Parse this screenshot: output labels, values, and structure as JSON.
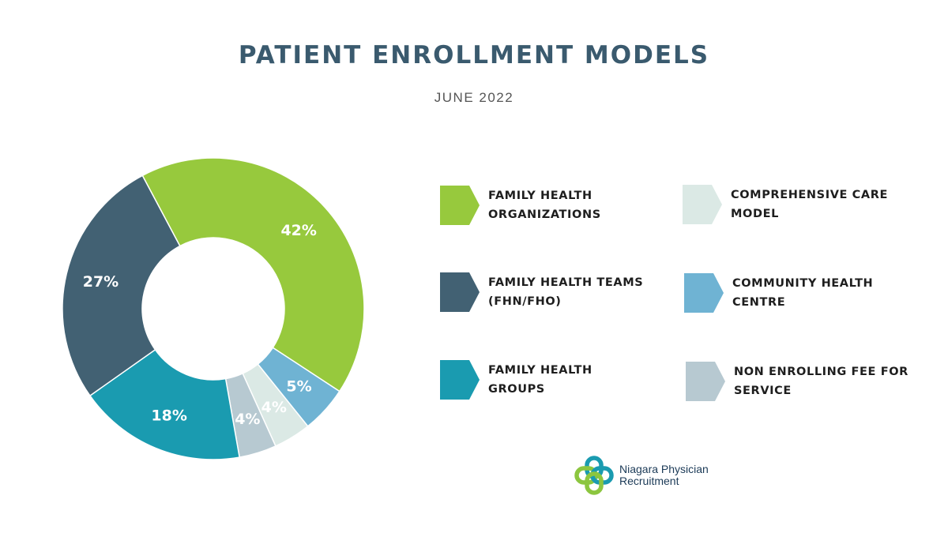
{
  "header": {
    "title": "PATIENT ENROLLMENT MODELS",
    "subtitle": "JUNE 2022"
  },
  "chart_data": {
    "type": "pie",
    "donut": true,
    "title": "PATIENT ENROLLMENT MODELS",
    "subtitle": "JUNE 2022",
    "series": [
      {
        "name": "FAMILY HEALTH ORGANIZATIONS",
        "value": 42,
        "label": "42%",
        "color": "#97c93d"
      },
      {
        "name": "COMMUNITY HEALTH CENTRE",
        "value": 5,
        "label": "5%",
        "color": "#6fb3d3"
      },
      {
        "name": "COMPREHENSIVE CARE MODEL",
        "value": 4,
        "label": "4%",
        "color": "#dbe9e5"
      },
      {
        "name": "NON ENROLLING FEE FOR SERVICE",
        "value": 4,
        "label": "4%",
        "color": "#b7c9d1"
      },
      {
        "name": "FAMILY HEALTH GROUPS",
        "value": 18,
        "label": "18%",
        "color": "#1a9bb0"
      },
      {
        "name": "FAMILY HEALTH TEAMS (FHN/FHO)",
        "value": 27,
        "label": "27%",
        "color": "#426173"
      }
    ],
    "legend_placement": "right"
  },
  "legend": {
    "items": [
      {
        "line1": "FAMILY HEALTH",
        "line2": "ORGANIZATIONS",
        "color": "#97c93d"
      },
      {
        "line1": "COMPREHENSIVE CARE",
        "line2": "MODEL",
        "color": "#dbe9e5"
      },
      {
        "line1": "FAMILY HEALTH TEAMS",
        "line2": "(FHN/FHO)",
        "color": "#426173"
      },
      {
        "line1": "COMMUNITY HEALTH",
        "line2": "CENTRE",
        "color": "#6fb3d3"
      },
      {
        "line1": "FAMILY HEALTH",
        "line2": "GROUPS",
        "color": "#1a9bb0"
      },
      {
        "line1": "NON ENROLLING FEE FOR",
        "line2": "SERVICE",
        "color": "#b7c9d1"
      }
    ]
  },
  "logo": {
    "line1": "Niagara Physician",
    "line2": "Recruitment",
    "colors": {
      "green": "#8cc63f",
      "teal": "#1a9bb0"
    }
  }
}
